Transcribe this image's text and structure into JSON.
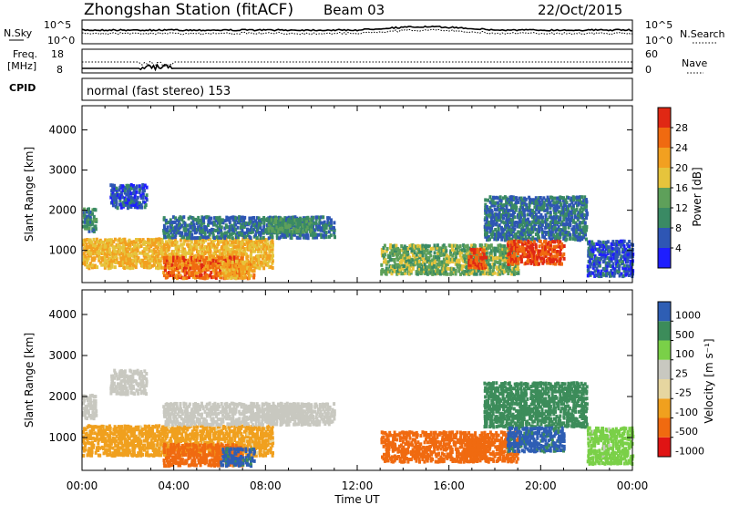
{
  "header": {
    "station": "Zhongshan Station (fitACF)",
    "beam": "Beam 03",
    "date": "22/Oct/2015"
  },
  "noise_panel": {
    "left_label": "N.Sky",
    "left_ticks": [
      "10^5",
      "10^0"
    ],
    "right_label": "N.Search",
    "right_ticks": [
      "10^5",
      "10^0"
    ]
  },
  "freq_panel": {
    "left_label_1": "Freq.",
    "left_label_2": "[MHz]",
    "left_ticks": [
      "18",
      "8"
    ],
    "right_label": "Nave",
    "right_ticks": [
      "60",
      "0"
    ]
  },
  "cpid_panel": {
    "label": "CPID",
    "text": "normal (fast stereo) 153"
  },
  "colors": {
    "power_scale": [
      "#1e1eff",
      "#2e56b4",
      "#3a8a64",
      "#5ea05a",
      "#e6c43c",
      "#f2a020",
      "#f06a10",
      "#e02814"
    ],
    "velocity_scale": [
      "#e01414",
      "#f06a10",
      "#f0a01e",
      "#e6d6a0",
      "#c8c8c0",
      "#7ad048",
      "#3c8c5a",
      "#2e5eb4"
    ]
  },
  "chart_data": [
    {
      "type": "heatmap",
      "title": "",
      "ylabel": "Slant Range [km]",
      "xlabel": "",
      "x_ticks": [
        "00:00",
        "04:00",
        "08:00",
        "12:00",
        "16:00",
        "20:00",
        "00:00"
      ],
      "y_ticks": [
        1000,
        2000,
        3000,
        4000
      ],
      "ylim": [
        200,
        4600
      ],
      "xlim_hours": [
        0,
        24
      ],
      "colorbar_label": "Power [dB]",
      "colorbar_ticks": [
        28,
        24,
        20,
        16,
        12,
        8,
        4
      ],
      "colorbar_range": [
        0,
        32
      ]
    },
    {
      "type": "heatmap",
      "title": "",
      "ylabel": "Slant Range [km]",
      "xlabel": "Time UT",
      "x_ticks": [
        "00:00",
        "04:00",
        "08:00",
        "12:00",
        "16:00",
        "20:00",
        "00:00"
      ],
      "y_ticks": [
        1000,
        2000,
        3000,
        4000
      ],
      "ylim": [
        200,
        4600
      ],
      "xlim_hours": [
        0,
        24
      ],
      "colorbar_label": "Velocity [m s⁻¹]",
      "colorbar_ticks": [
        "1000",
        "500",
        "100",
        "25",
        "-25",
        "-100",
        "-500",
        "-1000"
      ]
    }
  ]
}
